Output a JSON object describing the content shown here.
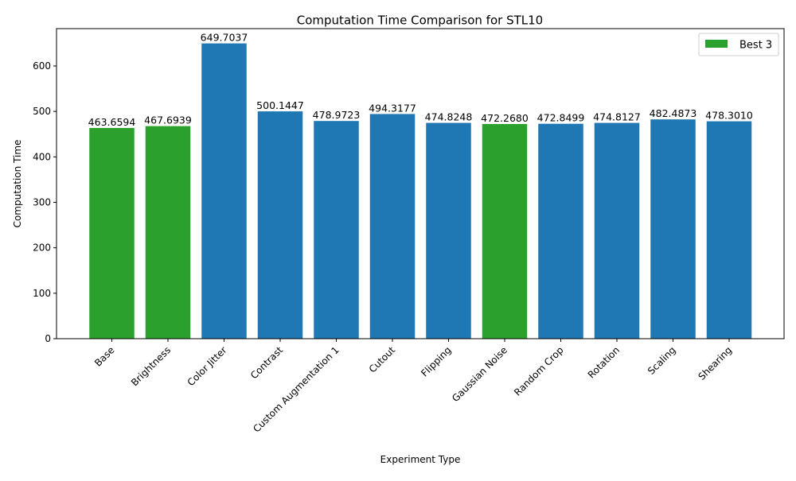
{
  "chart_data": {
    "type": "bar",
    "title": "Computation Time Comparison for STL10",
    "xlabel": "Experiment Type",
    "ylabel": "Computation Time",
    "categories": [
      "Base",
      "Brightness",
      "Color Jitter",
      "Contrast",
      "Custom Augmentation 1",
      "Cutout",
      "Flipping",
      "Gaussian Noise",
      "Random Crop",
      "Rotation",
      "Scaling",
      "Shearing"
    ],
    "values": [
      463.6594,
      467.6939,
      649.7037,
      500.1447,
      478.9723,
      494.3177,
      474.8248,
      472.268,
      472.8499,
      474.8127,
      482.4873,
      478.301
    ],
    "value_labels": [
      "463.6594",
      "467.6939",
      "649.7037",
      "500.1447",
      "478.9723",
      "494.3177",
      "474.8248",
      "472.2680",
      "472.8499",
      "474.8127",
      "482.4873",
      "478.3010"
    ],
    "highlighted": [
      "Base",
      "Brightness",
      "Gaussian Noise"
    ],
    "ylim": [
      0,
      682.2
    ],
    "yticks": [
      0,
      100,
      200,
      300,
      400,
      500,
      600
    ],
    "grid": false,
    "legend": {
      "position": "upper-right",
      "entries": [
        {
          "label": "Best 3",
          "color": "#2ca02c"
        }
      ]
    },
    "colors": {
      "default": "#1f77b4",
      "highlight": "#2ca02c"
    }
  }
}
